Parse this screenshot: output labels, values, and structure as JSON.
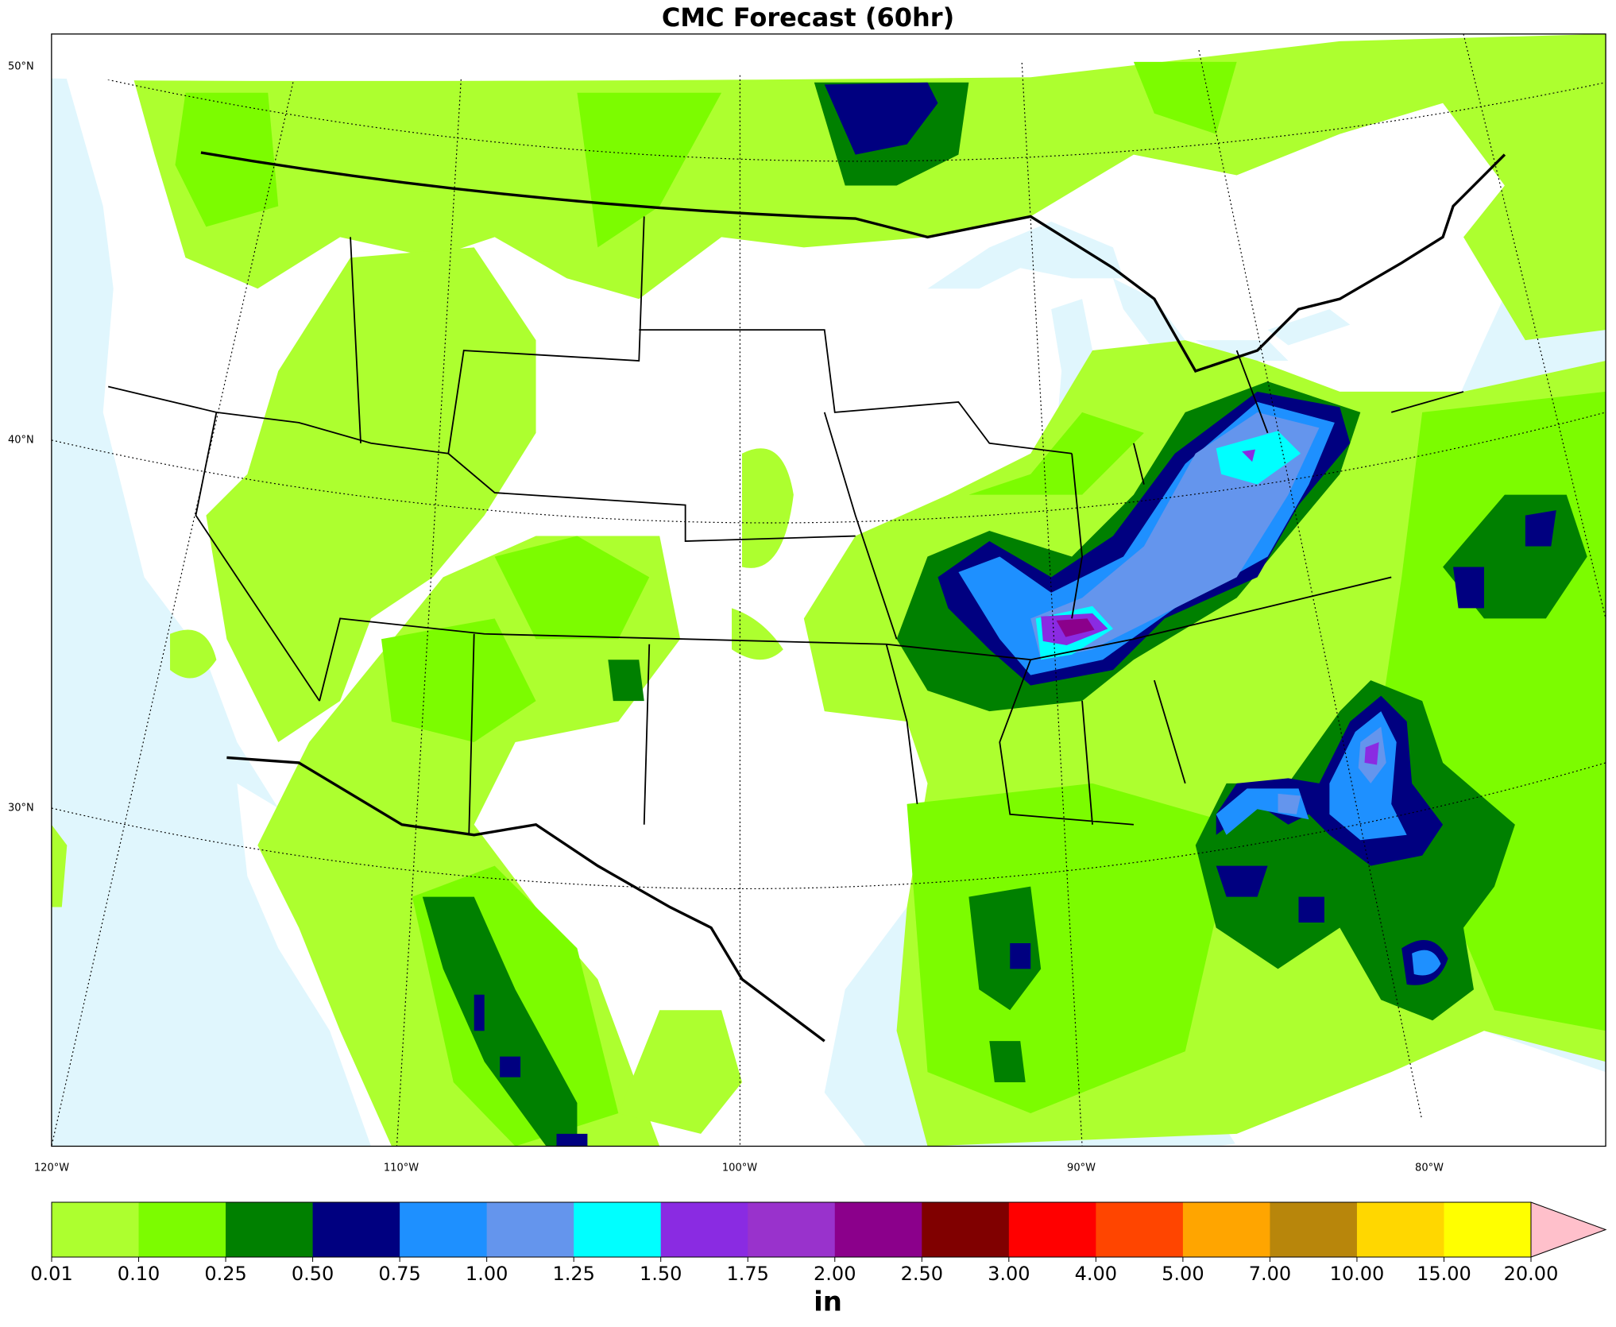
{
  "title": "CMC Forecast (60hr)",
  "map": {
    "lat_labels": [
      "50°N",
      "40°N",
      "30°N"
    ],
    "lon_labels": [
      "120°W",
      "110°W",
      "100°W",
      "90°W",
      "80°W"
    ]
  },
  "colorbar": {
    "label": "in",
    "levels": [
      0.01,
      {
        "value": 0.1,
        "label": "0.10"
      },
      0.25,
      {
        "value": 0.5,
        "label": "0.50"
      },
      0.75,
      {
        "value": 1,
        "label": "1.00"
      },
      1.25,
      {
        "value": 1.5,
        "label": "1.50"
      },
      1.75,
      {
        "value": 2,
        "label": "2.00"
      },
      {
        "value": 2.5,
        "label": "2.50"
      },
      {
        "value": 3,
        "label": "3.00"
      },
      {
        "value": 4,
        "label": "4.00"
      },
      {
        "value": 5,
        "label": "5.00"
      },
      {
        "value": 7,
        "label": "7.00"
      },
      {
        "value": 10,
        "label": "10.00"
      },
      {
        "value": 15,
        "label": "15.00"
      },
      {
        "value": 20,
        "label": "20.00"
      }
    ],
    "colors": [
      "#adff2f",
      "#7cfc00",
      "#008000",
      "#000080",
      "#1e90ff",
      "#6495ed",
      "#00ffff",
      "#8a2be2",
      "#9932cc",
      "#8b008b",
      "#800000",
      "#ff0000",
      "#ff4500",
      "#ffa500",
      "#b8860b",
      "#ffd700",
      "#ffff00"
    ],
    "extend_color": "#ffc0cb"
  }
}
